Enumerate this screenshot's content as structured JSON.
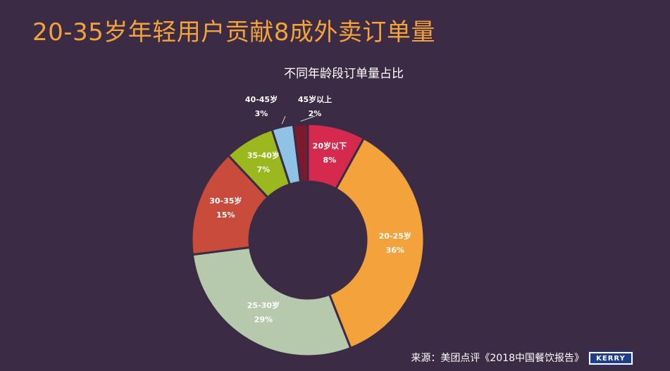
{
  "title": "20-35岁年轻用户贡献8成外卖订单量",
  "source": "来源：美团点评《2018中国餐饮报告》",
  "logo_text": "KERRY",
  "colors": {
    "background": "#3b2b44",
    "title": "#f3a23c"
  },
  "chart_data": {
    "type": "pie",
    "variant": "donut",
    "title": "不同年龄段订单量占比",
    "slices": [
      {
        "label": "20岁以下",
        "value": 8,
        "display": "8%",
        "color": "#d5294d"
      },
      {
        "label": "20-25岁",
        "value": 36,
        "display": "36%",
        "color": "#f3a23c"
      },
      {
        "label": "25-30岁",
        "value": 29,
        "display": "29%",
        "color": "#b7c9ad"
      },
      {
        "label": "30-35岁",
        "value": 15,
        "display": "15%",
        "color": "#c94b3c"
      },
      {
        "label": "35-40岁",
        "value": 7,
        "display": "7%",
        "color": "#9bb81f"
      },
      {
        "label": "40-45岁",
        "value": 3,
        "display": "3%",
        "color": "#8fc2e4"
      },
      {
        "label": "45岁以上",
        "value": 2,
        "display": "2%",
        "color": "#7b1a2f"
      }
    ]
  }
}
